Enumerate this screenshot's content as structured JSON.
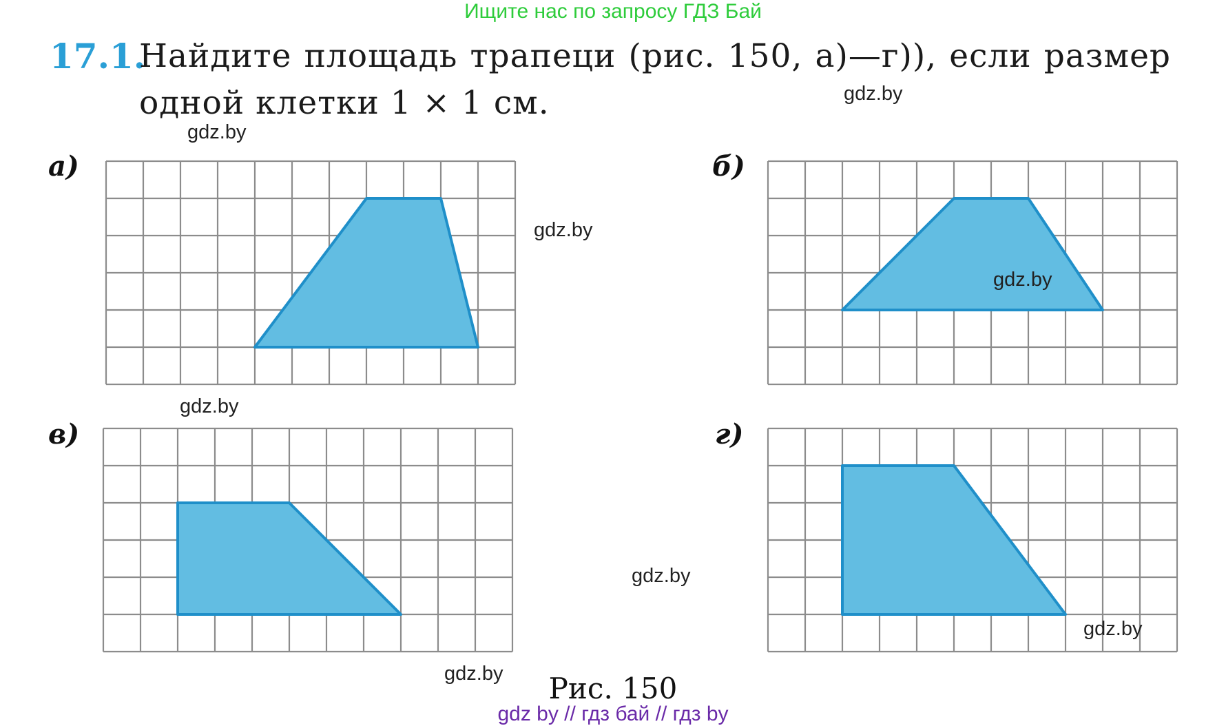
{
  "banner": "Ищите нас по запросу ГДЗ Бай",
  "task": {
    "number": "17.1.",
    "line1": "Найдите площадь трапеци (рис. 150, а)—г)), если размер",
    "line2": "одной клетки 1 × 1 см."
  },
  "watermark": "gdz.by",
  "panels": [
    {
      "label": "а)",
      "cols": 11,
      "rows": 6,
      "shape": [
        [
          7,
          1
        ],
        [
          9,
          1
        ],
        [
          10,
          5
        ],
        [
          4,
          5
        ]
      ]
    },
    {
      "label": "б)",
      "cols": 11,
      "rows": 6,
      "shape": [
        [
          5,
          1
        ],
        [
          7,
          1
        ],
        [
          9,
          4
        ],
        [
          2,
          4
        ]
      ]
    },
    {
      "label": "в)",
      "cols": 11,
      "rows": 6,
      "shape": [
        [
          2,
          2
        ],
        [
          5,
          2
        ],
        [
          8,
          5
        ],
        [
          2,
          5
        ]
      ]
    },
    {
      "label": "г)",
      "cols": 11,
      "rows": 6,
      "shape": [
        [
          2,
          1
        ],
        [
          5,
          1
        ],
        [
          8,
          5
        ],
        [
          2,
          5
        ]
      ]
    }
  ],
  "caption": "Рис. 150",
  "footer": "gdz by  //  гдз бай  //  гдз by",
  "colors": {
    "grid": "#8c8c8c",
    "fill": "#62bde2",
    "stroke": "#1f8fc9",
    "task_number": "#2a9fd6",
    "banner": "#2ecc3b",
    "footer": "#6a2aa8"
  }
}
